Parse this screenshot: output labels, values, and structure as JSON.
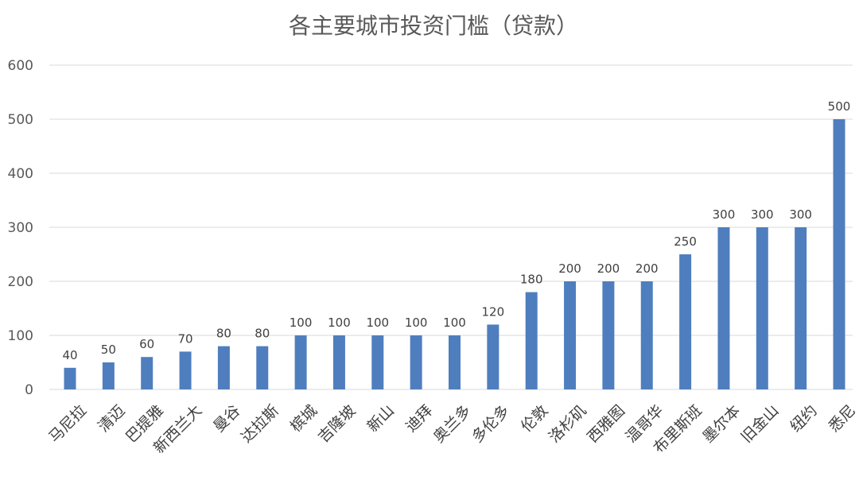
{
  "chart_data": {
    "type": "bar",
    "title": "各主要城市投资门槛（贷款）",
    "xlabel": "",
    "ylabel": "",
    "ylim": [
      0,
      600
    ],
    "yticks": [
      0,
      100,
      200,
      300,
      400,
      500,
      600
    ],
    "grid": true,
    "legend": "none",
    "bar_color": "#4f7ebe",
    "categories": [
      "马尼拉",
      "清迈",
      "巴提雅",
      "新西兰大",
      "曼谷",
      "达拉斯",
      "槟城",
      "吉隆坡",
      "新山",
      "迪拜",
      "奥兰多",
      "多伦多",
      "伦敦",
      "洛杉矶",
      "西雅图",
      "温哥华",
      "布里斯班",
      "墨尔本",
      "旧金山",
      "纽约",
      "悉尼"
    ],
    "values": [
      40,
      50,
      60,
      70,
      80,
      80,
      100,
      100,
      100,
      100,
      100,
      120,
      180,
      200,
      200,
      200,
      250,
      300,
      300,
      300,
      500
    ]
  }
}
